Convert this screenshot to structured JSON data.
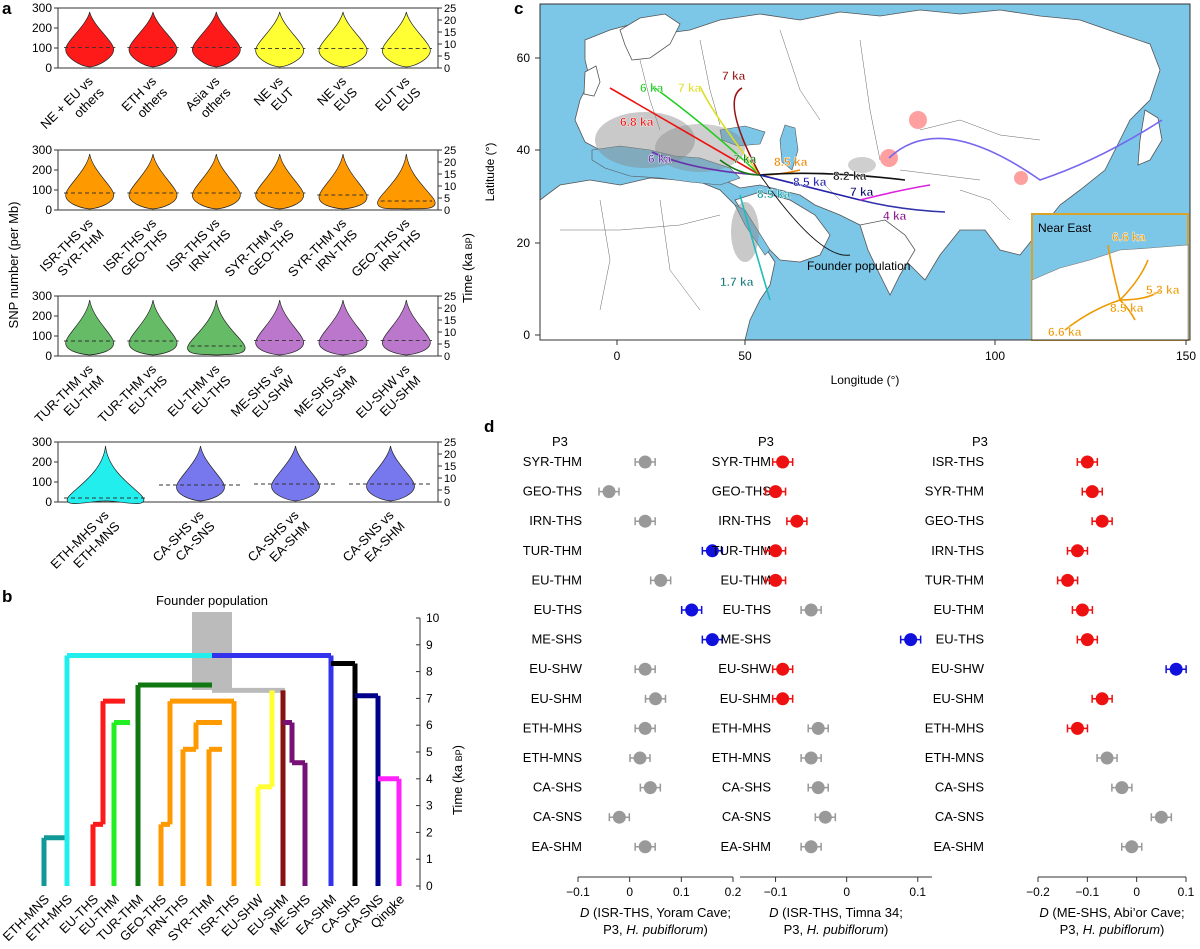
{
  "panel_labels": [
    "a",
    "b",
    "c",
    "d"
  ],
  "colors": {
    "red": "#ff1a1a",
    "yellow": "#ffff33",
    "orange": "#ff9900",
    "green": "#66bb66",
    "purple": "#bb77cc",
    "cyan": "#22eeee",
    "violet": "#7777ee",
    "sea": "#7cc6e8",
    "land": "#ffffff",
    "gray": "#999999",
    "blue": "#1111dd"
  },
  "panel_a": {
    "ylabel_left": "SNP number (per Mb)",
    "ylabel_right_main": "Time (ka ",
    "ylabel_right_sub": "BP",
    "ylabel_right_end": ")",
    "left_ticks": [
      "300",
      "200",
      "100",
      "0"
    ],
    "right_ticks": [
      "25",
      "20",
      "15",
      "10",
      "5",
      "0"
    ],
    "rows": [
      {
        "violins": [
          {
            "line1": "NE + EU vs",
            "line2": "others",
            "color": "#ff1a1a",
            "median": 103,
            "spread": 1.0
          },
          {
            "line1": "ETH vs",
            "line2": "others",
            "color": "#ff1a1a",
            "median": 103,
            "spread": 1.0
          },
          {
            "line1": "Asia vs",
            "line2": "others",
            "color": "#ff1a1a",
            "median": 103,
            "spread": 1.0
          },
          {
            "line1": "NE vs",
            "line2": "EUT",
            "color": "#ffff33",
            "median": 98,
            "spread": 1.0
          },
          {
            "line1": "NE vs",
            "line2": "EUS",
            "color": "#ffff33",
            "median": 98,
            "spread": 1.0
          },
          {
            "line1": "EUT vs",
            "line2": "EUS",
            "color": "#ffff33",
            "median": 98,
            "spread": 1.0
          }
        ]
      },
      {
        "violins": [
          {
            "line1": "ISR-THS vs",
            "line2": "SYR-THM",
            "color": "#ff9900",
            "median": 85,
            "spread": 1.0
          },
          {
            "line1": "ISR-THS vs",
            "line2": "GEO-THS",
            "color": "#ff9900",
            "median": 85,
            "spread": 1.0
          },
          {
            "line1": "ISR-THS vs",
            "line2": "IRN-THS",
            "color": "#ff9900",
            "median": 85,
            "spread": 1.0
          },
          {
            "line1": "SYR-THM vs",
            "line2": "GEO-THS",
            "color": "#ff9900",
            "median": 85,
            "spread": 1.0
          },
          {
            "line1": "SYR-THM vs",
            "line2": "IRN-THS",
            "color": "#ff9900",
            "median": 75,
            "spread": 1.0
          },
          {
            "line1": "GEO-THS vs",
            "line2": "IRN-THS",
            "color": "#ff9900",
            "median": 45,
            "spread": 1.2
          }
        ]
      },
      {
        "violins": [
          {
            "line1": "TUR-THM vs",
            "line2": "EU-THM",
            "color": "#66bb66",
            "median": 75,
            "spread": 1.0
          },
          {
            "line1": "TUR-THM vs",
            "line2": "EU-THS",
            "color": "#66bb66",
            "median": 75,
            "spread": 1.0
          },
          {
            "line1": "EU-THM vs",
            "line2": "EU-THS",
            "color": "#66bb66",
            "median": 50,
            "spread": 1.2
          },
          {
            "line1": "ME-SHS vs",
            "line2": "EU-SHW",
            "color": "#bb77cc",
            "median": 78,
            "spread": 1.0
          },
          {
            "line1": "ME-SHS vs",
            "line2": "EU-SHM",
            "color": "#bb77cc",
            "median": 78,
            "spread": 1.0
          },
          {
            "line1": "EU-SHW vs",
            "line2": "EU-SHM",
            "color": "#bb77cc",
            "median": 78,
            "spread": 1.0
          }
        ]
      },
      {
        "violins": [
          {
            "line1": "ETH-MHS vs",
            "line2": "ETH-MNS",
            "color": "#22eeee",
            "median": 20,
            "spread": 1.6
          },
          {
            "line1": "CA-SHS vs",
            "line2": "CA-SNS",
            "color": "#7777ee",
            "median": 85,
            "spread": 1.0
          },
          {
            "line1": "CA-SHS vs",
            "line2": "EA-SHM",
            "color": "#7777ee",
            "median": 90,
            "spread": 1.0
          },
          {
            "line1": "CA-SNS vs",
            "line2": "EA-SHM",
            "color": "#7777ee",
            "median": 90,
            "spread": 1.0
          }
        ]
      }
    ]
  },
  "panel_b": {
    "founder_label": "Founder population",
    "time_label_main": "Time (ka ",
    "time_label_sub": "BP",
    "time_label_end": ")",
    "time_ticks": [
      "10",
      "9",
      "8",
      "7",
      "6",
      "5",
      "4",
      "3",
      "2",
      "1",
      "0"
    ],
    "taxa": [
      {
        "name": "ETH-MNS",
        "color": "#119999"
      },
      {
        "name": "ETH-MHS",
        "color": "#22eeee"
      },
      {
        "name": "EU-THS",
        "color": "#ff1a1a"
      },
      {
        "name": "EU-THM",
        "color": "#22ee22"
      },
      {
        "name": "TUR-THM",
        "color": "#117711"
      },
      {
        "name": "GEO-THS",
        "color": "#ff9900"
      },
      {
        "name": "IRN-THS",
        "color": "#ff9900"
      },
      {
        "name": "SYR-THM",
        "color": "#ff9900"
      },
      {
        "name": "ISR-THS",
        "color": "#ff9900"
      },
      {
        "name": "EU-SHW",
        "color": "#ffff33"
      },
      {
        "name": "EU-SHM",
        "color": "#881111"
      },
      {
        "name": "ME-SHS",
        "color": "#771177"
      },
      {
        "name": "EA-SHM",
        "color": "#3333ee"
      },
      {
        "name": "CA-SHS",
        "color": "#000000"
      },
      {
        "name": "CA-SNS",
        "color": "#000088"
      },
      {
        "name": "Qingke",
        "color": "#ff22ff"
      }
    ]
  },
  "panel_c": {
    "ylabel": "Latitude (°)",
    "xlabel": "Longitude (°)",
    "x_ticks": [
      "0",
      "50",
      "100",
      "150"
    ],
    "y_ticks": [
      "60",
      "40",
      "20",
      "0"
    ],
    "inset_title": "Near East",
    "founder_label": "Founder population",
    "labels": [
      {
        "text": "7 ka",
        "color": "#991111"
      },
      {
        "text": "6 ka",
        "color": "#22cc22"
      },
      {
        "text": "7 ka",
        "color": "#dddd22"
      },
      {
        "text": "6.8 ka",
        "color": "#ee1111"
      },
      {
        "text": "6 ka",
        "color": "#6633aa"
      },
      {
        "text": "7 ka",
        "color": "#117711"
      },
      {
        "text": "8.5 ka",
        "color": "#ee8800"
      },
      {
        "text": "8.2 ka",
        "color": "#111111"
      },
      {
        "text": "8.5 ka",
        "color": "#2222aa"
      },
      {
        "text": "7 ka",
        "color": "#000066"
      },
      {
        "text": "8.5 ka",
        "color": "#119999"
      },
      {
        "text": "4 ka",
        "color": "#881188"
      },
      {
        "text": "1.7 ka",
        "color": "#117777"
      },
      {
        "text": "6.6 ka",
        "color": "#ee9900"
      },
      {
        "text": "5.3 ka",
        "color": "#ee9900"
      },
      {
        "text": "8.5 ka",
        "color": "#ee9900"
      },
      {
        "text": "6.6 ka",
        "color": "#ee9900"
      }
    ]
  },
  "panel_d": {
    "categories": [
      "SYR-THM",
      "GEO-THS",
      "IRN-THS",
      "TUR-THM",
      "EU-THM",
      "EU-THS",
      "ME-SHS",
      "EU-SHW",
      "EU-SHM",
      "ETH-MHS",
      "ETH-MNS",
      "CA-SHS",
      "CA-SNS",
      "EA-SHM"
    ],
    "p3_label": "P3",
    "subplots": [
      {
        "categories": [
          "SYR-THM",
          "GEO-THS",
          "IRN-THS",
          "TUR-THM",
          "EU-THM",
          "EU-THS",
          "ME-SHS",
          "EU-SHW",
          "EU-SHM",
          "ETH-MHS",
          "ETH-MNS",
          "CA-SHS",
          "CA-SNS",
          "EA-SHM"
        ],
        "values": [
          0.03,
          -0.04,
          0.03,
          0.16,
          0.06,
          0.12,
          0.16,
          0.03,
          0.05,
          0.03,
          0.02,
          0.04,
          -0.02,
          0.03
        ],
        "colors": [
          "#999999",
          "#999999",
          "#999999",
          "#1111dd",
          "#999999",
          "#1111dd",
          "#1111dd",
          "#999999",
          "#999999",
          "#999999",
          "#999999",
          "#999999",
          "#999999",
          "#999999"
        ],
        "xlim": [
          -0.1,
          0.2
        ],
        "ticks": [
          "−0.1",
          "0",
          "0.1",
          "0.2"
        ],
        "tick_values": [
          -0.1,
          0,
          0.1,
          0.2
        ],
        "label_line1_pre": "D",
        "label_line1": " (ISR-THS, Yoram Cave;",
        "label_line2_pre": "P3, ",
        "label_line2_it": "H. pubiflorum",
        "label_line2_end": ")"
      },
      {
        "categories": [
          "SYR-THM",
          "GEO-THS",
          "IRN-THS",
          "TUR-THM",
          "EU-THM",
          "EU-THS",
          "ME-SHS",
          "EU-SHW",
          "EU-SHM",
          "ETH-MHS",
          "ETH-MNS",
          "CA-SHS",
          "CA-SNS",
          "EA-SHM"
        ],
        "values": [
          -0.09,
          -0.1,
          -0.07,
          -0.1,
          -0.1,
          -0.05,
          0.09,
          -0.09,
          -0.09,
          -0.04,
          -0.05,
          -0.04,
          -0.03,
          -0.05
        ],
        "colors": [
          "#ee1111",
          "#ee1111",
          "#ee1111",
          "#ee1111",
          "#ee1111",
          "#999999",
          "#1111dd",
          "#ee1111",
          "#ee1111",
          "#999999",
          "#999999",
          "#999999",
          "#999999",
          "#999999"
        ],
        "xlim": [
          -0.15,
          0.12
        ],
        "ticks": [
          "−0.1",
          "0",
          "0.1"
        ],
        "tick_values": [
          -0.1,
          0,
          0.1
        ],
        "label_line1_pre": "D",
        "label_line1": " (ISR-THS, Timna 34;",
        "label_line2_pre": "P3, ",
        "label_line2_it": "H. pubiflorum",
        "label_line2_end": ")"
      },
      {
        "categories": [
          "ISR-THS",
          "SYR-THM",
          "GEO-THS",
          "IRN-THS",
          "TUR-THM",
          "EU-THM",
          "EU-THS",
          "EU-SHW",
          "EU-SHM",
          "ETH-MHS",
          "ETH-MNS",
          "CA-SHS",
          "CA-SNS",
          "EA-SHM"
        ],
        "values": [
          -0.1,
          -0.09,
          -0.07,
          -0.12,
          -0.14,
          -0.11,
          -0.1,
          0.08,
          -0.07,
          -0.12,
          -0.06,
          -0.03,
          0.05,
          -0.01
        ],
        "colors": [
          "#ee1111",
          "#ee1111",
          "#ee1111",
          "#ee1111",
          "#ee1111",
          "#ee1111",
          "#ee1111",
          "#1111dd",
          "#ee1111",
          "#ee1111",
          "#999999",
          "#999999",
          "#999999",
          "#999999"
        ],
        "xlim": [
          -0.2,
          0.1
        ],
        "ticks": [
          "−0.2",
          "−0.1",
          "0",
          "0.1"
        ],
        "tick_values": [
          -0.2,
          -0.1,
          0,
          0.1
        ],
        "label_line1_pre": "D",
        "label_line1": " (ME-SHS, Abi’or Cave;",
        "label_line2_pre": "P3, ",
        "label_line2_it": "H. pubiflorum",
        "label_line2_end": ")"
      }
    ]
  }
}
